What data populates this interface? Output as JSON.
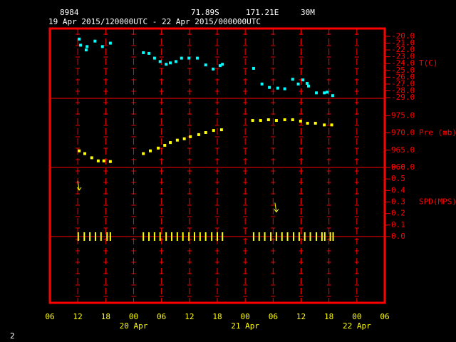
{
  "header": {
    "station": "8984",
    "latitude": "71.89S",
    "longitude": "171.21E",
    "elevation": "30M",
    "period": "19 Apr 2015/120000UTC - 22 Apr 2015/000000UTC"
  },
  "footer": {
    "page": "2"
  },
  "chart_data": {
    "type": "scatter",
    "xlim": [
      0,
      72
    ],
    "xticks": [
      {
        "value": 0,
        "label": "06"
      },
      {
        "value": 6,
        "label": "12"
      },
      {
        "value": 12,
        "label": "18"
      },
      {
        "value": 18,
        "label": "00"
      },
      {
        "value": 24,
        "label": "06"
      },
      {
        "value": 30,
        "label": "12"
      },
      {
        "value": 36,
        "label": "18"
      },
      {
        "value": 42,
        "label": "00"
      },
      {
        "value": 48,
        "label": "06"
      },
      {
        "value": 54,
        "label": "12"
      },
      {
        "value": 60,
        "label": "18"
      },
      {
        "value": 66,
        "label": "00"
      },
      {
        "value": 72,
        "label": "06"
      }
    ],
    "xdates": [
      {
        "value": 18,
        "label": "20 Apr"
      },
      {
        "value": 42,
        "label": "21 Apr"
      },
      {
        "value": 66,
        "label": "22 Apr"
      }
    ],
    "panels": [
      {
        "ylabel": "T(C)",
        "ylim": [
          -29.1,
          -18.85
        ],
        "yticks": [
          {
            "value": -20,
            "label": "-20.0"
          },
          {
            "value": -21,
            "label": "-21.0"
          },
          {
            "value": -22,
            "label": "-22.0"
          },
          {
            "value": -23,
            "label": "-23.0"
          },
          {
            "value": -24,
            "label": "-24.0"
          },
          {
            "value": -25,
            "label": "-25.0"
          },
          {
            "value": -26,
            "label": "-26.0"
          },
          {
            "value": -27,
            "label": "-27.0"
          },
          {
            "value": -28,
            "label": "-28.0"
          },
          {
            "value": -29,
            "label": "-29.0"
          }
        ],
        "series": [
          {
            "color": "#00ffff",
            "marker": "square",
            "x": [
              6.3,
              6.6,
              7.8,
              8.0,
              9.7,
              11.3,
              13.0,
              20.1,
              21.3,
              22.5,
              23.7,
              25.0,
              25.9,
              27.1,
              28.3,
              29.9,
              31.7,
              33.5,
              35.1,
              36.6,
              37.1,
              43.8,
              45.6,
              47.2,
              49.0,
              50.5,
              52.2,
              53.4,
              54.4,
              55.3,
              55.6,
              57.3,
              59.0,
              59.6,
              60.8
            ],
            "values": [
              -20.4,
              -21.3,
              -22.0,
              -21.5,
              -20.7,
              -21.5,
              -21.0,
              -22.4,
              -22.5,
              -23.2,
              -23.7,
              -24.1,
              -23.9,
              -23.7,
              -23.2,
              -23.2,
              -23.2,
              -24.2,
              -24.8,
              -24.3,
              -24.1,
              -24.7,
              -27.0,
              -27.5,
              -27.6,
              -27.7,
              -26.3,
              -27.0,
              -26.4,
              -26.9,
              -27.3,
              -28.3,
              -28.3,
              -28.2,
              -28.7
            ]
          }
        ]
      },
      {
        "ylabel": "Pre (mb)",
        "ylim": [
          960,
          980
        ],
        "yticks": [
          {
            "value": 975,
            "label": "975.0"
          },
          {
            "value": 970,
            "label": "970.0"
          },
          {
            "value": 965,
            "label": "965.0"
          },
          {
            "value": 960,
            "label": "960.0"
          }
        ],
        "series": [
          {
            "color": "#ffff00",
            "marker": "square",
            "x": [
              6.3,
              7.5,
              9.0,
              10.4,
              11.6,
              13.0,
              20.1,
              21.6,
              23.3,
              24.7,
              25.9,
              27.4,
              28.9,
              30.2,
              32.0,
              33.5,
              35.2,
              36.9,
              43.6,
              45.3,
              47.0,
              48.7,
              50.5,
              52.2,
              53.9,
              55.4,
              57.1,
              59.0,
              60.6
            ],
            "values": [
              964.8,
              964.0,
              962.8,
              961.9,
              961.9,
              961.7,
              964.0,
              964.8,
              965.6,
              966.4,
              967.2,
              967.9,
              968.3,
              968.9,
              969.5,
              970.1,
              970.7,
              970.9,
              973.6,
              973.6,
              973.8,
              973.6,
              973.8,
              973.8,
              973.4,
              972.8,
              972.8,
              972.3,
              972.3
            ]
          }
        ]
      },
      {
        "ylabel": "SPD(MPS)",
        "ylim": [
          0,
          0.6
        ],
        "yticks": [
          0.6,
          0.5,
          0.4,
          0.3,
          0.2,
          0.1,
          {
            "value": 0,
            "label": "0.0"
          }
        ],
        "series": [
          {
            "color": "#ffff00",
            "marker": "arrow",
            "x": [
              6.3,
              48.7
            ],
            "values": [
              0.44,
              0.25
            ]
          },
          {
            "color": "#ffff00",
            "marker": "tick",
            "x": [
              6.1,
              7.4,
              8.6,
              9.8,
              11.0,
              12.3,
              13.0,
              20.1,
              21.3,
              22.5,
              23.7,
              25.0,
              26.2,
              27.4,
              28.6,
              29.9,
              31.1,
              32.3,
              33.5,
              34.8,
              36.0,
              37.1,
              43.8,
              45.0,
              46.2,
              47.5,
              48.7,
              49.9,
              51.1,
              52.4,
              53.6,
              54.8,
              56.0,
              57.3,
              58.5,
              59.1,
              60.3,
              60.9
            ],
            "values": [
              0,
              0,
              0,
              0,
              0,
              0,
              0,
              0,
              0,
              0,
              0,
              0,
              0,
              0,
              0,
              0,
              0,
              0,
              0,
              0,
              0,
              0,
              0,
              0,
              0,
              0,
              0,
              0,
              0,
              0,
              0,
              0,
              0,
              0,
              0,
              0,
              0,
              0
            ]
          }
        ]
      }
    ]
  }
}
